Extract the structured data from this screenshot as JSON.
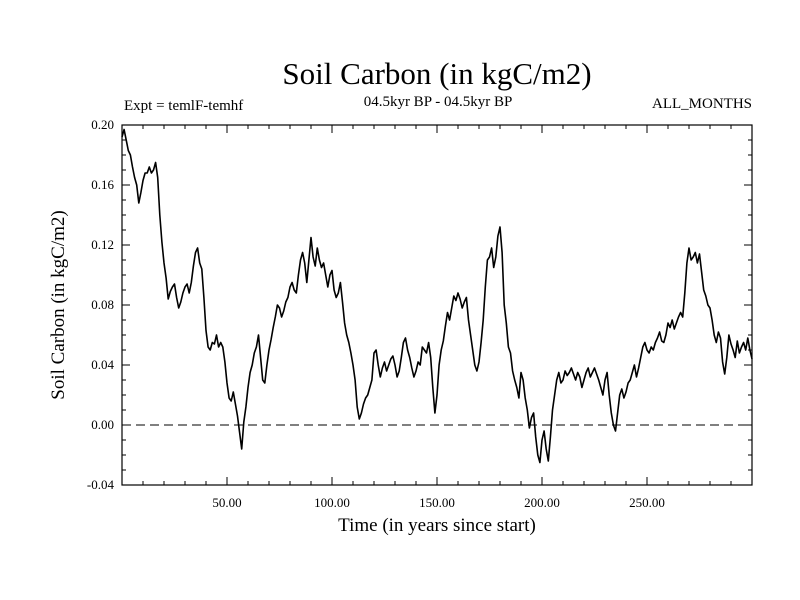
{
  "chart_data": {
    "type": "line",
    "title": "Soil Carbon (in kgC/m2)",
    "subtitle_left": "Expt = temlF-temhf",
    "subtitle_center": "04.5kyr BP - 04.5kyr BP",
    "subtitle_right": "ALL_MONTHS",
    "xlabel": "Time (in years since start)",
    "ylabel": "Soil Carbon (in kgC/m2)",
    "xlim": [
      0,
      300
    ],
    "ylim": [
      -0.04,
      0.2
    ],
    "x_ticks": [
      50,
      100,
      150,
      200,
      250
    ],
    "x_tick_labels": [
      "50.00",
      "100.00",
      "150.00",
      "200.00",
      "250.00"
    ],
    "y_ticks": [
      -0.04,
      0.0,
      0.04,
      0.08,
      0.12,
      0.16,
      0.2
    ],
    "y_tick_labels": [
      "-0.04",
      "0.00",
      "0.04",
      "0.08",
      "0.12",
      "0.16",
      "0.20"
    ],
    "reference_line": {
      "y": 0.0,
      "style": "dashed"
    },
    "series": [
      {
        "name": "Soil Carbon",
        "color": "#000000",
        "points": [
          [
            0,
            0.192
          ],
          [
            1,
            0.197
          ],
          [
            2,
            0.19
          ],
          [
            3,
            0.183
          ],
          [
            4,
            0.18
          ],
          [
            5,
            0.172
          ],
          [
            6,
            0.165
          ],
          [
            7,
            0.16
          ],
          [
            8,
            0.148
          ],
          [
            9,
            0.155
          ],
          [
            10,
            0.163
          ],
          [
            11,
            0.168
          ],
          [
            12,
            0.168
          ],
          [
            13,
            0.172
          ],
          [
            14,
            0.168
          ],
          [
            15,
            0.17
          ],
          [
            16,
            0.175
          ],
          [
            17,
            0.165
          ],
          [
            18,
            0.14
          ],
          [
            19,
            0.122
          ],
          [
            20,
            0.108
          ],
          [
            21,
            0.098
          ],
          [
            22,
            0.084
          ],
          [
            23,
            0.089
          ],
          [
            24,
            0.092
          ],
          [
            25,
            0.094
          ],
          [
            26,
            0.085
          ],
          [
            27,
            0.078
          ],
          [
            28,
            0.082
          ],
          [
            29,
            0.088
          ],
          [
            30,
            0.092
          ],
          [
            31,
            0.094
          ],
          [
            32,
            0.088
          ],
          [
            33,
            0.095
          ],
          [
            34,
            0.106
          ],
          [
            35,
            0.115
          ],
          [
            36,
            0.118
          ],
          [
            37,
            0.108
          ],
          [
            38,
            0.104
          ],
          [
            39,
            0.085
          ],
          [
            40,
            0.063
          ],
          [
            41,
            0.052
          ],
          [
            42,
            0.05
          ],
          [
            43,
            0.055
          ],
          [
            44,
            0.054
          ],
          [
            45,
            0.06
          ],
          [
            46,
            0.052
          ],
          [
            47,
            0.055
          ],
          [
            48,
            0.052
          ],
          [
            49,
            0.042
          ],
          [
            50,
            0.028
          ],
          [
            51,
            0.018
          ],
          [
            52,
            0.016
          ],
          [
            53,
            0.022
          ],
          [
            54,
            0.014
          ],
          [
            55,
            0.006
          ],
          [
            56,
            -0.005
          ],
          [
            57,
            -0.016
          ],
          [
            58,
            0.002
          ],
          [
            59,
            0.012
          ],
          [
            60,
            0.025
          ],
          [
            61,
            0.035
          ],
          [
            62,
            0.04
          ],
          [
            63,
            0.048
          ],
          [
            64,
            0.052
          ],
          [
            65,
            0.06
          ],
          [
            66,
            0.045
          ],
          [
            67,
            0.03
          ],
          [
            68,
            0.028
          ],
          [
            69,
            0.04
          ],
          [
            70,
            0.05
          ],
          [
            71,
            0.057
          ],
          [
            72,
            0.065
          ],
          [
            73,
            0.072
          ],
          [
            74,
            0.08
          ],
          [
            75,
            0.078
          ],
          [
            76,
            0.072
          ],
          [
            77,
            0.076
          ],
          [
            78,
            0.082
          ],
          [
            79,
            0.085
          ],
          [
            80,
            0.092
          ],
          [
            81,
            0.095
          ],
          [
            82,
            0.09
          ],
          [
            83,
            0.088
          ],
          [
            84,
            0.1
          ],
          [
            85,
            0.11
          ],
          [
            86,
            0.115
          ],
          [
            87,
            0.108
          ],
          [
            88,
            0.095
          ],
          [
            89,
            0.11
          ],
          [
            90,
            0.125
          ],
          [
            91,
            0.112
          ],
          [
            92,
            0.106
          ],
          [
            93,
            0.118
          ],
          [
            94,
            0.11
          ],
          [
            95,
            0.105
          ],
          [
            96,
            0.108
          ],
          [
            97,
            0.1
          ],
          [
            98,
            0.092
          ],
          [
            99,
            0.1
          ],
          [
            100,
            0.103
          ],
          [
            101,
            0.09
          ],
          [
            102,
            0.085
          ],
          [
            103,
            0.088
          ],
          [
            104,
            0.095
          ],
          [
            105,
            0.082
          ],
          [
            106,
            0.068
          ],
          [
            107,
            0.06
          ],
          [
            108,
            0.055
          ],
          [
            109,
            0.048
          ],
          [
            110,
            0.04
          ],
          [
            111,
            0.03
          ],
          [
            112,
            0.012
          ],
          [
            113,
            0.004
          ],
          [
            114,
            0.008
          ],
          [
            115,
            0.014
          ],
          [
            116,
            0.018
          ],
          [
            117,
            0.02
          ],
          [
            118,
            0.025
          ],
          [
            119,
            0.03
          ],
          [
            120,
            0.048
          ],
          [
            121,
            0.05
          ],
          [
            122,
            0.04
          ],
          [
            123,
            0.032
          ],
          [
            124,
            0.038
          ],
          [
            125,
            0.042
          ],
          [
            126,
            0.036
          ],
          [
            127,
            0.04
          ],
          [
            128,
            0.044
          ],
          [
            129,
            0.046
          ],
          [
            130,
            0.04
          ],
          [
            131,
            0.032
          ],
          [
            132,
            0.036
          ],
          [
            133,
            0.045
          ],
          [
            134,
            0.055
          ],
          [
            135,
            0.058
          ],
          [
            136,
            0.05
          ],
          [
            137,
            0.045
          ],
          [
            138,
            0.038
          ],
          [
            139,
            0.032
          ],
          [
            140,
            0.036
          ],
          [
            141,
            0.042
          ],
          [
            142,
            0.04
          ],
          [
            143,
            0.052
          ],
          [
            144,
            0.05
          ],
          [
            145,
            0.048
          ],
          [
            146,
            0.055
          ],
          [
            147,
            0.045
          ],
          [
            148,
            0.025
          ],
          [
            149,
            0.008
          ],
          [
            150,
            0.02
          ],
          [
            151,
            0.04
          ],
          [
            152,
            0.05
          ],
          [
            153,
            0.056
          ],
          [
            154,
            0.066
          ],
          [
            155,
            0.075
          ],
          [
            156,
            0.07
          ],
          [
            157,
            0.078
          ],
          [
            158,
            0.086
          ],
          [
            159,
            0.083
          ],
          [
            160,
            0.088
          ],
          [
            161,
            0.084
          ],
          [
            162,
            0.078
          ],
          [
            163,
            0.082
          ],
          [
            164,
            0.085
          ],
          [
            165,
            0.07
          ],
          [
            166,
            0.06
          ],
          [
            167,
            0.05
          ],
          [
            168,
            0.04
          ],
          [
            169,
            0.036
          ],
          [
            170,
            0.042
          ],
          [
            171,
            0.055
          ],
          [
            172,
            0.07
          ],
          [
            173,
            0.092
          ],
          [
            174,
            0.11
          ],
          [
            175,
            0.112
          ],
          [
            176,
            0.118
          ],
          [
            177,
            0.105
          ],
          [
            178,
            0.112
          ],
          [
            179,
            0.126
          ],
          [
            180,
            0.132
          ],
          [
            181,
            0.115
          ],
          [
            182,
            0.08
          ],
          [
            183,
            0.068
          ],
          [
            184,
            0.052
          ],
          [
            185,
            0.048
          ],
          [
            186,
            0.036
          ],
          [
            187,
            0.03
          ],
          [
            188,
            0.025
          ],
          [
            189,
            0.018
          ],
          [
            190,
            0.035
          ],
          [
            191,
            0.03
          ],
          [
            192,
            0.018
          ],
          [
            193,
            0.01
          ],
          [
            194,
            -0.002
          ],
          [
            195,
            0.005
          ],
          [
            196,
            0.008
          ],
          [
            197,
            -0.008
          ],
          [
            198,
            -0.02
          ],
          [
            199,
            -0.025
          ],
          [
            200,
            -0.01
          ],
          [
            201,
            -0.004
          ],
          [
            202,
            -0.016
          ],
          [
            203,
            -0.024
          ],
          [
            204,
            -0.008
          ],
          [
            205,
            0.01
          ],
          [
            206,
            0.02
          ],
          [
            207,
            0.03
          ],
          [
            208,
            0.035
          ],
          [
            209,
            0.028
          ],
          [
            210,
            0.03
          ],
          [
            211,
            0.036
          ],
          [
            212,
            0.033
          ],
          [
            213,
            0.035
          ],
          [
            214,
            0.038
          ],
          [
            215,
            0.034
          ],
          [
            216,
            0.03
          ],
          [
            217,
            0.035
          ],
          [
            218,
            0.032
          ],
          [
            219,
            0.025
          ],
          [
            220,
            0.03
          ],
          [
            221,
            0.035
          ],
          [
            222,
            0.038
          ],
          [
            223,
            0.032
          ],
          [
            224,
            0.035
          ],
          [
            225,
            0.038
          ],
          [
            226,
            0.034
          ],
          [
            227,
            0.03
          ],
          [
            228,
            0.025
          ],
          [
            229,
            0.02
          ],
          [
            230,
            0.03
          ],
          [
            231,
            0.035
          ],
          [
            232,
            0.02
          ],
          [
            233,
            0.008
          ],
          [
            234,
            0.0
          ],
          [
            235,
            -0.004
          ],
          [
            236,
            0.008
          ],
          [
            237,
            0.02
          ],
          [
            238,
            0.024
          ],
          [
            239,
            0.018
          ],
          [
            240,
            0.022
          ],
          [
            241,
            0.028
          ],
          [
            242,
            0.03
          ],
          [
            243,
            0.035
          ],
          [
            244,
            0.04
          ],
          [
            245,
            0.032
          ],
          [
            246,
            0.038
          ],
          [
            247,
            0.045
          ],
          [
            248,
            0.052
          ],
          [
            249,
            0.055
          ],
          [
            250,
            0.05
          ],
          [
            251,
            0.048
          ],
          [
            252,
            0.052
          ],
          [
            253,
            0.05
          ],
          [
            254,
            0.055
          ],
          [
            255,
            0.058
          ],
          [
            256,
            0.062
          ],
          [
            257,
            0.056
          ],
          [
            258,
            0.055
          ],
          [
            259,
            0.06
          ],
          [
            260,
            0.068
          ],
          [
            261,
            0.065
          ],
          [
            262,
            0.07
          ],
          [
            263,
            0.064
          ],
          [
            264,
            0.068
          ],
          [
            265,
            0.072
          ],
          [
            266,
            0.075
          ],
          [
            267,
            0.072
          ],
          [
            268,
            0.088
          ],
          [
            269,
            0.108
          ],
          [
            270,
            0.118
          ],
          [
            271,
            0.11
          ],
          [
            272,
            0.112
          ],
          [
            273,
            0.115
          ],
          [
            274,
            0.108
          ],
          [
            275,
            0.114
          ],
          [
            276,
            0.102
          ],
          [
            277,
            0.09
          ],
          [
            278,
            0.086
          ],
          [
            279,
            0.08
          ],
          [
            280,
            0.078
          ],
          [
            281,
            0.07
          ],
          [
            282,
            0.06
          ],
          [
            283,
            0.055
          ],
          [
            284,
            0.062
          ],
          [
            285,
            0.058
          ],
          [
            286,
            0.042
          ],
          [
            287,
            0.034
          ],
          [
            288,
            0.045
          ],
          [
            289,
            0.06
          ],
          [
            290,
            0.054
          ],
          [
            291,
            0.05
          ],
          [
            292,
            0.045
          ],
          [
            293,
            0.056
          ],
          [
            294,
            0.048
          ],
          [
            295,
            0.052
          ],
          [
            296,
            0.055
          ],
          [
            297,
            0.05
          ],
          [
            298,
            0.058
          ],
          [
            299,
            0.05
          ],
          [
            300,
            0.044
          ]
        ]
      }
    ]
  }
}
